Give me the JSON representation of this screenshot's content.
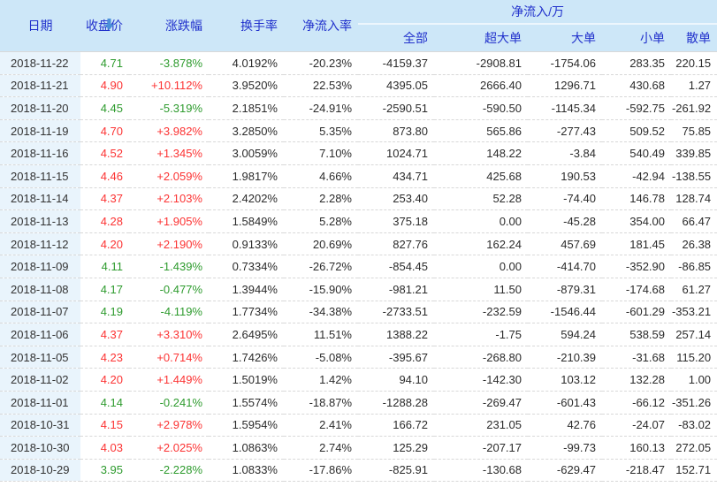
{
  "table": {
    "columns": [
      "日期",
      "收盘价",
      "涨跌幅",
      "换手率",
      "净流入率"
    ],
    "group_header": {
      "label": "净流入/万",
      "subcolumns": [
        "全部",
        "超大单",
        "大单",
        "小单",
        "散单"
      ]
    },
    "sort": {
      "column": "日期",
      "direction": "desc",
      "icon": "sort-desc-arrow"
    },
    "colors": {
      "header_bg": "#cde7f8",
      "header_text": "#2232cc",
      "date_column_bg": "#e9f4fc",
      "up_red": "#fc3333",
      "down_green": "#2e9b2e",
      "sort_arrow_blue": "#4a90d9",
      "body_text": "#2b2b2b",
      "row_divider": "#d8d8d8"
    },
    "rows": [
      {
        "date": "2018-11-22",
        "close": "4.71",
        "change": "-3.878%",
        "turnover": "4.0192%",
        "inflow_rate": "-20.23%",
        "all": "-4159.37",
        "super_large": "-2908.81",
        "large": "-1754.06",
        "small": "283.35",
        "scattered": "220.15"
      },
      {
        "date": "2018-11-21",
        "close": "4.90",
        "change": "+10.112%",
        "turnover": "3.9520%",
        "inflow_rate": "22.53%",
        "all": "4395.05",
        "super_large": "2666.40",
        "large": "1296.71",
        "small": "430.68",
        "scattered": "1.27"
      },
      {
        "date": "2018-11-20",
        "close": "4.45",
        "change": "-5.319%",
        "turnover": "2.1851%",
        "inflow_rate": "-24.91%",
        "all": "-2590.51",
        "super_large": "-590.50",
        "large": "-1145.34",
        "small": "-592.75",
        "scattered": "-261.92"
      },
      {
        "date": "2018-11-19",
        "close": "4.70",
        "change": "+3.982%",
        "turnover": "3.2850%",
        "inflow_rate": "5.35%",
        "all": "873.80",
        "super_large": "565.86",
        "large": "-277.43",
        "small": "509.52",
        "scattered": "75.85"
      },
      {
        "date": "2018-11-16",
        "close": "4.52",
        "change": "+1.345%",
        "turnover": "3.0059%",
        "inflow_rate": "7.10%",
        "all": "1024.71",
        "super_large": "148.22",
        "large": "-3.84",
        "small": "540.49",
        "scattered": "339.85"
      },
      {
        "date": "2018-11-15",
        "close": "4.46",
        "change": "+2.059%",
        "turnover": "1.9817%",
        "inflow_rate": "4.66%",
        "all": "434.71",
        "super_large": "425.68",
        "large": "190.53",
        "small": "-42.94",
        "scattered": "-138.55"
      },
      {
        "date": "2018-11-14",
        "close": "4.37",
        "change": "+2.103%",
        "turnover": "2.4202%",
        "inflow_rate": "2.28%",
        "all": "253.40",
        "super_large": "52.28",
        "large": "-74.40",
        "small": "146.78",
        "scattered": "128.74"
      },
      {
        "date": "2018-11-13",
        "close": "4.28",
        "change": "+1.905%",
        "turnover": "1.5849%",
        "inflow_rate": "5.28%",
        "all": "375.18",
        "super_large": "0.00",
        "large": "-45.28",
        "small": "354.00",
        "scattered": "66.47"
      },
      {
        "date": "2018-11-12",
        "close": "4.20",
        "change": "+2.190%",
        "turnover": "0.9133%",
        "inflow_rate": "20.69%",
        "all": "827.76",
        "super_large": "162.24",
        "large": "457.69",
        "small": "181.45",
        "scattered": "26.38"
      },
      {
        "date": "2018-11-09",
        "close": "4.11",
        "change": "-1.439%",
        "turnover": "0.7334%",
        "inflow_rate": "-26.72%",
        "all": "-854.45",
        "super_large": "0.00",
        "large": "-414.70",
        "small": "-352.90",
        "scattered": "-86.85"
      },
      {
        "date": "2018-11-08",
        "close": "4.17",
        "change": "-0.477%",
        "turnover": "1.3944%",
        "inflow_rate": "-15.90%",
        "all": "-981.21",
        "super_large": "11.50",
        "large": "-879.31",
        "small": "-174.68",
        "scattered": "61.27"
      },
      {
        "date": "2018-11-07",
        "close": "4.19",
        "change": "-4.119%",
        "turnover": "1.7734%",
        "inflow_rate": "-34.38%",
        "all": "-2733.51",
        "super_large": "-232.59",
        "large": "-1546.44",
        "small": "-601.29",
        "scattered": "-353.21"
      },
      {
        "date": "2018-11-06",
        "close": "4.37",
        "change": "+3.310%",
        "turnover": "2.6495%",
        "inflow_rate": "11.51%",
        "all": "1388.22",
        "super_large": "-1.75",
        "large": "594.24",
        "small": "538.59",
        "scattered": "257.14"
      },
      {
        "date": "2018-11-05",
        "close": "4.23",
        "change": "+0.714%",
        "turnover": "1.7426%",
        "inflow_rate": "-5.08%",
        "all": "-395.67",
        "super_large": "-268.80",
        "large": "-210.39",
        "small": "-31.68",
        "scattered": "115.20"
      },
      {
        "date": "2018-11-02",
        "close": "4.20",
        "change": "+1.449%",
        "turnover": "1.5019%",
        "inflow_rate": "1.42%",
        "all": "94.10",
        "super_large": "-142.30",
        "large": "103.12",
        "small": "132.28",
        "scattered": "1.00"
      },
      {
        "date": "2018-11-01",
        "close": "4.14",
        "change": "-0.241%",
        "turnover": "1.5574%",
        "inflow_rate": "-18.87%",
        "all": "-1288.28",
        "super_large": "-269.47",
        "large": "-601.43",
        "small": "-66.12",
        "scattered": "-351.26"
      },
      {
        "date": "2018-10-31",
        "close": "4.15",
        "change": "+2.978%",
        "turnover": "1.5954%",
        "inflow_rate": "2.41%",
        "all": "166.72",
        "super_large": "231.05",
        "large": "42.76",
        "small": "-24.07",
        "scattered": "-83.02"
      },
      {
        "date": "2018-10-30",
        "close": "4.03",
        "change": "+2.025%",
        "turnover": "1.0863%",
        "inflow_rate": "2.74%",
        "all": "125.29",
        "super_large": "-207.17",
        "large": "-99.73",
        "small": "160.13",
        "scattered": "272.05"
      },
      {
        "date": "2018-10-29",
        "close": "3.95",
        "change": "-2.228%",
        "turnover": "1.0833%",
        "inflow_rate": "-17.86%",
        "all": "-825.91",
        "super_large": "-130.68",
        "large": "-629.47",
        "small": "-218.47",
        "scattered": "152.71"
      }
    ]
  }
}
